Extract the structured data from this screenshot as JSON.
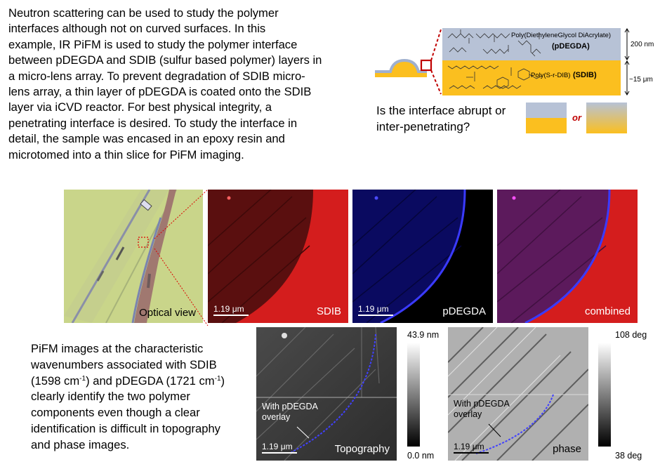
{
  "intro": {
    "lines": [
      "Neutron scattering can be used to study the polymer",
      "interfaces although not on curved surfaces.  In this",
      "example, IR PiFM is used to study the polymer interface",
      "between pDEGDA and SDIB (sulfur based polymer) layers in",
      "a micro-lens array.  To prevent degradation of SDIB micro-",
      "lens array, a thin layer of pDEGDA is coated onto the SDIB",
      "layer via iCVD reactor.  For best physical integrity, a",
      "penetrating interface is desired.  To study the interface in",
      "detail, the sample was encased in an epoxy resin and",
      "microtomed into a thin slice for PiFM imaging."
    ]
  },
  "schematic": {
    "top_layer_name": "Poly(DiethyleneGlycol DiAcrylate)",
    "top_layer_abbr": "(pDEGDA)",
    "bottom_layer_name": "Poly(S-r-DIB)",
    "bottom_layer_abbr": "(SDIB)",
    "top_thickness": "200 nm",
    "bottom_thickness": "~15 μm",
    "colors": {
      "pdegda": "#b7c2d6",
      "sdib": "#fbbf1f",
      "callout": "#c00000"
    }
  },
  "question": {
    "line1": "Is the interface abrupt or",
    "line2": "inter-penetrating?",
    "or_text": "or"
  },
  "panels": {
    "optical_label": "Optical view",
    "sdib_label": "SDIB",
    "pdegda_label": "pDEGDA",
    "combined_label": "combined",
    "scale": "1.19 μm"
  },
  "bottom_text": {
    "line1": "PiFM images at the characteristic",
    "line2": "wavenumbers associated with SDIB",
    "sdib_pre": "(1598 cm",
    "sup": "-1",
    "sdib_post": ") and pDEGDA (1721 cm",
    "pdegda_post": ")",
    "line4": "clearly identify the two polymer",
    "line5": "components even though a clear",
    "line6": "identification is difficult in topography",
    "line7": "and phase images."
  },
  "topography": {
    "label": "Topography",
    "scale": "1.19 μm",
    "overlay_note_1": "With pDEGDA",
    "overlay_note_2": "overlay",
    "max": "43.9 nm",
    "min": "0.0 nm"
  },
  "phase": {
    "label": "phase",
    "scale": "1.19 μm",
    "overlay_note_1": "With pDEGDA",
    "overlay_note_2": "overlay",
    "max": "108 deg",
    "min": "38 deg"
  }
}
